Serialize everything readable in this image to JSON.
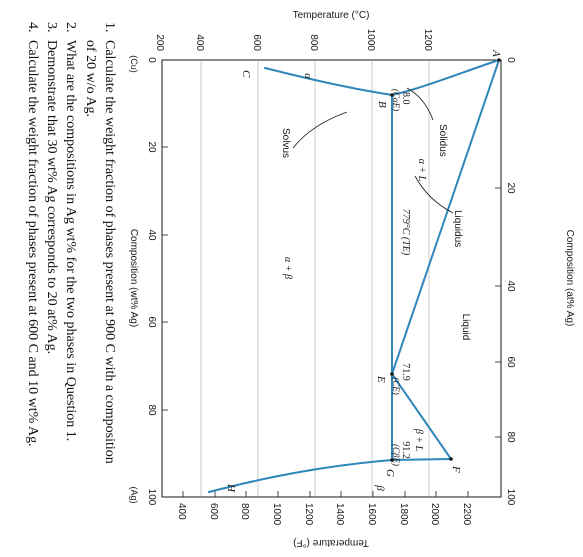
{
  "figure": {
    "top_axis_title": "Temperature (°C)",
    "bottom_axis_title": "Temperature (°F)",
    "left_axis_title": "Composition (wt% Ag)",
    "right_axis_title": "Composition (at% Ag)",
    "cu_label": "(Cu)",
    "ag_label": "(Ag)",
    "celsius_ticks": [
      "200",
      "400",
      "600",
      "800",
      "1000",
      "1200"
    ],
    "fahrenheit_ticks": [
      "400",
      "600",
      "800",
      "1000",
      "1200",
      "1400",
      "1600",
      "1800",
      "2000",
      "2200"
    ],
    "wt_ticks": [
      "0",
      "20",
      "40",
      "60",
      "80",
      "100"
    ],
    "at_ticks": [
      "0",
      "20",
      "40",
      "60",
      "80",
      "100"
    ],
    "regions": {
      "liquid": "Liquid",
      "alpha": "α",
      "beta": "β",
      "alpha_plus_l": "α + L",
      "beta_plus_l": "β + L",
      "alpha_plus_beta": "α + β"
    },
    "curve_labels": {
      "solidus": "Solidus",
      "liquidus": "Liquidus",
      "solvus": "Solvus"
    },
    "eutectic_label": "779°C (TE)",
    "points": {
      "A": "A",
      "B": "B",
      "C": "C",
      "E": "E",
      "F": "F",
      "G": "G",
      "H": "H"
    },
    "composition_labels": {
      "alpha_e_value": "8.0",
      "alpha_e_name": "(CαE)",
      "eutectic_value": "71.9",
      "eutectic_name": "(CE)",
      "beta_e_value": "91.2",
      "beta_e_name": "(CβE)"
    },
    "line_color": "#2f86b8"
  },
  "questions": [
    {
      "number": "1.",
      "lines": [
        "Calculate the weight fraction of phases present at 900 C with a composition",
        "of 20 w/o Ag."
      ]
    },
    {
      "number": "2.",
      "lines": [
        "What are the compositions in Ag wt% for the two phases in Question 1."
      ]
    },
    {
      "number": "3.",
      "lines": [
        "Demonstrate that 30 wt% Ag corresponds to 20 at% Ag."
      ]
    },
    {
      "number": "4.",
      "lines": [
        "Calculate the weight fraction of phases present at 600 C and 10 wt% Ag."
      ]
    }
  ]
}
